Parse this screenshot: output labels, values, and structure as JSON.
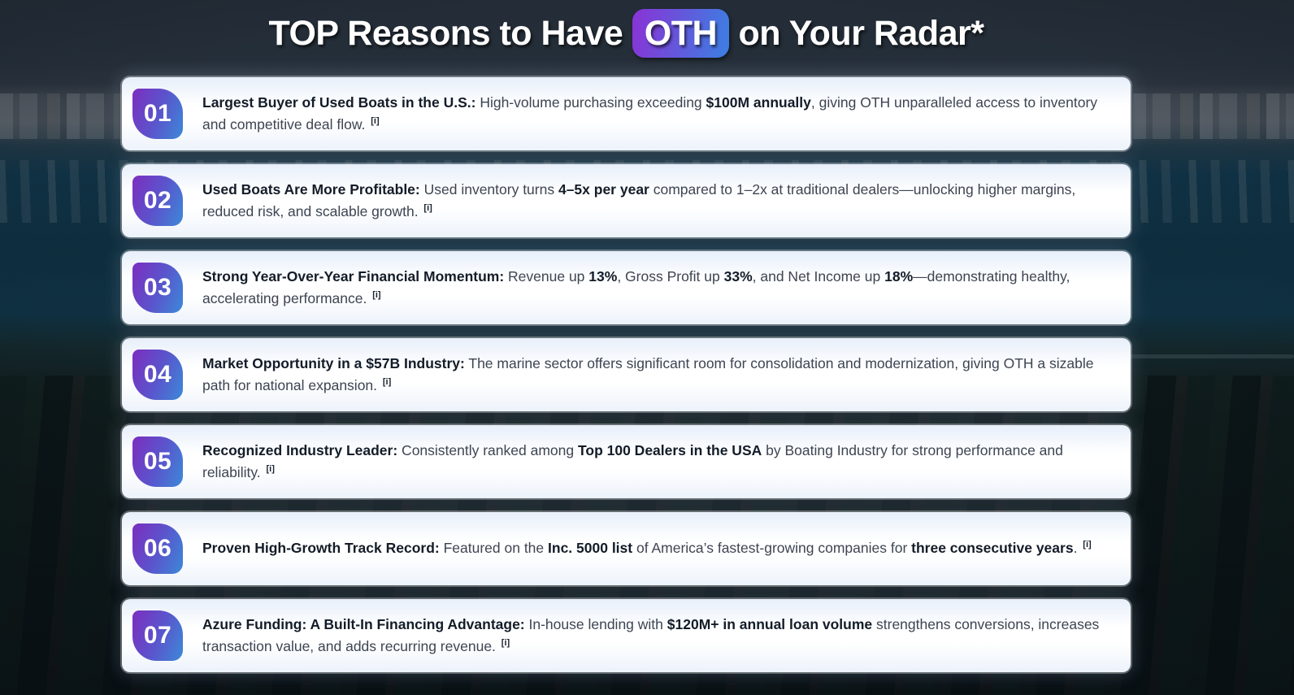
{
  "title": {
    "pre": "TOP Reasons to Have ",
    "highlight": "OTH",
    "post": " on Your Radar*"
  },
  "citation_marker": "[i]",
  "theme": {
    "badge_gradient_start": "#7b2fc0",
    "badge_gradient_end": "#3d87d8",
    "highlight_gradient_start": "#8636d6",
    "highlight_gradient_end": "#3f7ce2",
    "card_background": "#ffffff",
    "card_tint": "#e7effa",
    "body_text": "#3d4552",
    "bold_text": "#131c28",
    "water_background": "#14516c"
  },
  "cards": [
    {
      "number": "01",
      "segments": [
        {
          "b": true,
          "t": "Largest Buyer of Used Boats in the U.S.:"
        },
        {
          "b": false,
          "t": " High-volume purchasing exceeding "
        },
        {
          "b": true,
          "t": "$100M annually"
        },
        {
          "b": false,
          "t": ", giving OTH unparalleled access to inventory and competitive deal flow. "
        }
      ]
    },
    {
      "number": "02",
      "segments": [
        {
          "b": true,
          "t": "Used Boats Are More Profitable:"
        },
        {
          "b": false,
          "t": " Used inventory turns "
        },
        {
          "b": true,
          "t": "4–5x per year"
        },
        {
          "b": false,
          "t": " compared to 1–2x at traditional dealers—unlocking higher margins, reduced risk, and scalable growth. "
        }
      ]
    },
    {
      "number": "03",
      "segments": [
        {
          "b": true,
          "t": "Strong Year-Over-Year Financial Momentum:"
        },
        {
          "b": false,
          "t": " Revenue up "
        },
        {
          "b": true,
          "t": "13%"
        },
        {
          "b": false,
          "t": ", Gross Profit up "
        },
        {
          "b": true,
          "t": "33%"
        },
        {
          "b": false,
          "t": ", and Net Income up "
        },
        {
          "b": true,
          "t": "18%"
        },
        {
          "b": false,
          "t": "—demonstrating healthy, accelerating performance. "
        }
      ]
    },
    {
      "number": "04",
      "segments": [
        {
          "b": true,
          "t": "Market Opportunity in a $57B Industry:"
        },
        {
          "b": false,
          "t": " The marine sector offers significant room for consolidation and modernization, giving OTH a sizable path for national expansion. "
        }
      ]
    },
    {
      "number": "05",
      "segments": [
        {
          "b": true,
          "t": "Recognized Industry Leader:"
        },
        {
          "b": false,
          "t": " Consistently ranked among "
        },
        {
          "b": true,
          "t": "Top 100 Dealers in the USA"
        },
        {
          "b": false,
          "t": " by Boating Industry for strong performance and reliability. "
        }
      ]
    },
    {
      "number": "06",
      "segments": [
        {
          "b": true,
          "t": "Proven High-Growth Track Record:"
        },
        {
          "b": false,
          "t": " Featured on the "
        },
        {
          "b": true,
          "t": "Inc. 5000 list"
        },
        {
          "b": false,
          "t": " of America’s fastest-growing companies for "
        },
        {
          "b": true,
          "t": "three consecutive years"
        },
        {
          "b": false,
          "t": ". "
        }
      ]
    },
    {
      "number": "07",
      "segments": [
        {
          "b": true,
          "t": "Azure Funding: A Built-In Financing Advantage:"
        },
        {
          "b": false,
          "t": " In-house lending with "
        },
        {
          "b": true,
          "t": "$120M+ in annual loan volume"
        },
        {
          "b": false,
          "t": " strengthens conversions, increases transaction value, and adds recurring revenue. "
        }
      ]
    }
  ]
}
